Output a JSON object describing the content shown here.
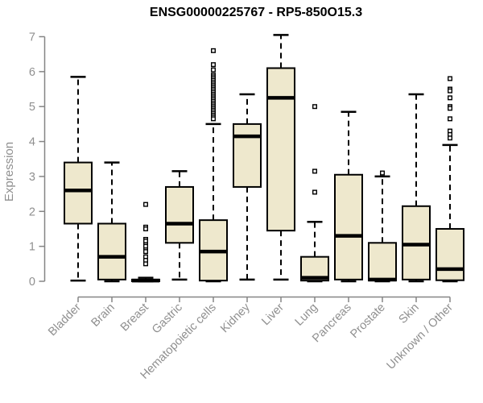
{
  "chart_data": {
    "type": "boxplot",
    "title": "ENSG00000225767 - RP5-850O15.3",
    "ylabel": "Expression",
    "ylim": [
      0,
      7
    ],
    "yticks": [
      0,
      1,
      2,
      3,
      4,
      5,
      6,
      7
    ],
    "grid": false,
    "legend": false,
    "categories": [
      "Bladder",
      "Brain",
      "Breast",
      "Gastric",
      "Hematopoietic cells",
      "Kidney",
      "Liver",
      "Lung",
      "Pancreas",
      "Prostate",
      "Skin",
      "Unknown / Other"
    ],
    "series": [
      {
        "category": "Bladder",
        "min": 0.02,
        "q1": 1.65,
        "median": 2.6,
        "q3": 3.4,
        "max": 5.85,
        "outliers": []
      },
      {
        "category": "Brain",
        "min": 0,
        "q1": 0.05,
        "median": 0.7,
        "q3": 1.65,
        "max": 3.4,
        "outliers": []
      },
      {
        "category": "Breast",
        "min": 0,
        "q1": 0,
        "median": 0.02,
        "q3": 0.05,
        "max": 0.1,
        "outliers": [
          2.2,
          1.55,
          1.5,
          1.2,
          1.15,
          1.05,
          1.0,
          0.9,
          0.85,
          0.7,
          0.6,
          0.5
        ]
      },
      {
        "category": "Gastric",
        "min": 0.05,
        "q1": 1.1,
        "median": 1.65,
        "q3": 2.7,
        "max": 3.15,
        "outliers": []
      },
      {
        "category": "Hematopoietic cells",
        "min": 0,
        "q1": 0.02,
        "median": 0.85,
        "q3": 1.75,
        "max": 4.5,
        "outliers": [
          6.6,
          6.2,
          6.05,
          5.9,
          5.85,
          5.8,
          5.75,
          5.7,
          5.65,
          5.6,
          5.55,
          5.5,
          5.45,
          5.4,
          5.35,
          5.3,
          5.25,
          5.2,
          5.15,
          5.1,
          5.05,
          5.0,
          4.95,
          4.9,
          4.85,
          4.8,
          4.75,
          4.7,
          4.65
        ]
      },
      {
        "category": "Kidney",
        "min": 0.05,
        "q1": 2.7,
        "median": 4.15,
        "q3": 4.5,
        "max": 5.35,
        "outliers": []
      },
      {
        "category": "Liver",
        "min": 0.05,
        "q1": 1.45,
        "median": 5.25,
        "q3": 6.1,
        "max": 7.05,
        "outliers": []
      },
      {
        "category": "Lung",
        "min": 0,
        "q1": 0.02,
        "median": 0.1,
        "q3": 0.7,
        "max": 1.7,
        "outliers": [
          5.0,
          3.15,
          2.55
        ]
      },
      {
        "category": "Pancreas",
        "min": 0,
        "q1": 0.05,
        "median": 1.3,
        "q3": 3.05,
        "max": 4.85,
        "outliers": []
      },
      {
        "category": "Prostate",
        "min": 0,
        "q1": 0.02,
        "median": 0.05,
        "q3": 1.1,
        "max": 3.0,
        "outliers": [
          3.1
        ]
      },
      {
        "category": "Skin",
        "min": 0,
        "q1": 0.05,
        "median": 1.05,
        "q3": 2.15,
        "max": 5.35,
        "outliers": []
      },
      {
        "category": "Unknown / Other",
        "min": 0,
        "q1": 0.03,
        "median": 0.35,
        "q3": 1.5,
        "max": 3.9,
        "outliers": [
          5.8,
          5.5,
          5.45,
          5.25,
          5.0,
          4.95,
          4.65,
          4.3,
          4.2,
          4.1
        ]
      }
    ],
    "style": {
      "box_fill": "#EEE8CD",
      "box_stroke": "#000000",
      "median_color": "#000000",
      "whisker_color": "#000000",
      "whisker_style": "dashed",
      "outlier_marker": "open-square",
      "axis_color": "#858585",
      "label_color": "#8f8f8f",
      "title_color": "#000000",
      "background": "#ffffff"
    }
  }
}
